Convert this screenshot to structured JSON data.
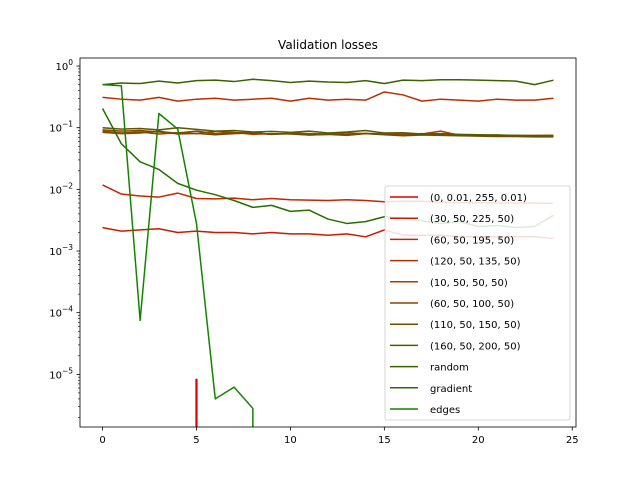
{
  "chart_data": {
    "type": "line",
    "title": "Validation losses",
    "xlabel": "",
    "ylabel": "",
    "xlim": [
      -1.2,
      25.2
    ],
    "ylim": [
      1.4e-06,
      1.35
    ],
    "yscale": "log",
    "x_ticks": [
      0,
      5,
      10,
      15,
      20,
      25
    ],
    "y_ticks": [
      {
        "value": 1,
        "label": "10^0"
      },
      {
        "value": 0.1,
        "label": "10^-1"
      },
      {
        "value": 0.01,
        "label": "10^-2"
      },
      {
        "value": 0.001,
        "label": "10^-3"
      },
      {
        "value": 0.0001,
        "label": "10^-4"
      },
      {
        "value": 1e-05,
        "label": "10^-5"
      }
    ],
    "grid": false,
    "legend_position": "lower-right",
    "series": [
      {
        "name": "(0, 0.01, 255, 0.01)",
        "color": "#d90000",
        "x": [
          5,
          5
        ],
        "y": [
          8.5e-06,
          1.4e-06
        ]
      },
      {
        "name": "(30, 50, 225, 50)",
        "color": "#c81c00",
        "x": [
          0,
          1,
          2,
          3,
          4,
          5,
          6,
          7,
          8,
          9,
          10,
          11,
          12,
          13,
          14,
          15,
          16,
          17,
          18,
          19,
          20,
          21,
          22,
          23,
          24
        ],
        "y": [
          0.0024,
          0.0021,
          0.0022,
          0.0023,
          0.002,
          0.0021,
          0.002,
          0.002,
          0.0019,
          0.002,
          0.0019,
          0.0019,
          0.0018,
          0.0019,
          0.0017,
          0.0022,
          0.0018,
          0.0018,
          0.0018,
          0.0017,
          0.0017,
          0.0017,
          0.0017,
          0.0017,
          0.0016
        ]
      },
      {
        "name": "(60, 50, 195, 50)",
        "color": "#c42600",
        "x": [
          0,
          1,
          2,
          3,
          4,
          5,
          6,
          7,
          8,
          9,
          10,
          11,
          12,
          13,
          14,
          15,
          16,
          17,
          18,
          19,
          20,
          21,
          22,
          23,
          24
        ],
        "y": [
          0.0118,
          0.0084,
          0.0078,
          0.0075,
          0.0087,
          0.0071,
          0.007,
          0.0072,
          0.0068,
          0.0071,
          0.0068,
          0.0067,
          0.0066,
          0.0068,
          0.0066,
          0.0063,
          0.0064,
          0.0064,
          0.0062,
          0.0061,
          0.0061,
          0.006,
          0.006,
          0.006,
          0.0059
        ]
      },
      {
        "name": "(120, 50, 135, 50)",
        "color": "#b82f00",
        "x": [
          0,
          1,
          2,
          3,
          4,
          5,
          6,
          7,
          8,
          9,
          10,
          11,
          12,
          13,
          14,
          15,
          16,
          17,
          18,
          19,
          20,
          21,
          22,
          23,
          24
        ],
        "y": [
          0.31,
          0.29,
          0.28,
          0.31,
          0.27,
          0.29,
          0.3,
          0.28,
          0.29,
          0.3,
          0.27,
          0.3,
          0.28,
          0.29,
          0.28,
          0.38,
          0.34,
          0.27,
          0.29,
          0.28,
          0.27,
          0.29,
          0.28,
          0.28,
          0.3
        ]
      },
      {
        "name": "(10, 50, 50, 50)",
        "color": "#a83e00",
        "x": [
          0,
          1,
          2,
          3,
          4,
          5,
          6,
          7,
          8,
          9,
          10,
          11,
          12,
          13,
          14,
          15,
          16,
          17,
          18,
          19,
          20,
          21,
          22,
          23,
          24
        ],
        "y": [
          0.088,
          0.082,
          0.085,
          0.079,
          0.083,
          0.08,
          0.087,
          0.084,
          0.078,
          0.08,
          0.079,
          0.076,
          0.078,
          0.082,
          0.08,
          0.078,
          0.077,
          0.079,
          0.088,
          0.075,
          0.076,
          0.074,
          0.075,
          0.074,
          0.075
        ]
      },
      {
        "name": "(60, 50, 100, 50)",
        "color": "#8c4500",
        "x": [
          0,
          1,
          2,
          3,
          4,
          5,
          6,
          7,
          8,
          9,
          10,
          11,
          12,
          13,
          14,
          15,
          16,
          17,
          18,
          19,
          20,
          21,
          22,
          23,
          24
        ],
        "y": [
          0.092,
          0.088,
          0.09,
          0.085,
          0.082,
          0.088,
          0.08,
          0.083,
          0.084,
          0.078,
          0.082,
          0.08,
          0.079,
          0.077,
          0.081,
          0.079,
          0.078,
          0.08,
          0.076,
          0.077,
          0.075,
          0.076,
          0.074,
          0.075,
          0.075
        ]
      },
      {
        "name": "(110, 50, 150, 50)",
        "color": "#6e4e00",
        "x": [
          0,
          1,
          2,
          3,
          4,
          5,
          6,
          7,
          8,
          9,
          10,
          11,
          12,
          13,
          14,
          15,
          16,
          17,
          18,
          19,
          20,
          21,
          22,
          23,
          24
        ],
        "y": [
          0.084,
          0.08,
          0.082,
          0.088,
          0.079,
          0.081,
          0.077,
          0.08,
          0.082,
          0.078,
          0.08,
          0.076,
          0.078,
          0.075,
          0.08,
          0.077,
          0.074,
          0.076,
          0.075,
          0.074,
          0.073,
          0.072,
          0.072,
          0.071,
          0.071
        ]
      },
      {
        "name": "(160, 50, 200, 50)",
        "color": "#545b00",
        "x": [
          0,
          1,
          2,
          3,
          4,
          5,
          6,
          7,
          8,
          9,
          10,
          11,
          12,
          13,
          14,
          15,
          16,
          17,
          18,
          19,
          20,
          21,
          22,
          23,
          24
        ],
        "y": [
          0.1,
          0.095,
          0.097,
          0.092,
          0.1,
          0.094,
          0.088,
          0.09,
          0.085,
          0.087,
          0.084,
          0.088,
          0.082,
          0.085,
          0.09,
          0.082,
          0.083,
          0.079,
          0.08,
          0.078,
          0.077,
          0.076,
          0.075,
          0.074,
          0.073
        ]
      },
      {
        "name": "random",
        "color": "#3a6200",
        "x": [
          0,
          1,
          2,
          3,
          4,
          5,
          6,
          7,
          8,
          9,
          10,
          11,
          12,
          13,
          14,
          15,
          16,
          17,
          18,
          19,
          20,
          21,
          22,
          23,
          24
        ],
        "y": [
          0.5,
          0.53,
          0.52,
          0.57,
          0.53,
          0.58,
          0.59,
          0.56,
          0.61,
          0.58,
          0.54,
          0.57,
          0.55,
          0.54,
          0.58,
          0.52,
          0.59,
          0.58,
          0.6,
          0.6,
          0.59,
          0.58,
          0.57,
          0.5,
          0.59
        ]
      },
      {
        "name": "gradient",
        "color": "#257000",
        "x": [
          0,
          1,
          2,
          3,
          4,
          5,
          6,
          7,
          8,
          9,
          10,
          11,
          12,
          13,
          14,
          15,
          16,
          17,
          18,
          19,
          20,
          21,
          22,
          23,
          24
        ],
        "y": [
          0.205,
          0.055,
          0.028,
          0.021,
          0.0125,
          0.0097,
          0.0082,
          0.0066,
          0.0051,
          0.0055,
          0.0044,
          0.0046,
          0.0033,
          0.0028,
          0.003,
          0.0036,
          0.0034,
          0.0031,
          0.0028,
          0.003,
          0.0025,
          0.0026,
          0.0024,
          0.0025,
          0.0038
        ]
      },
      {
        "name": "edges",
        "color": "#148400",
        "x": [
          0,
          1,
          2,
          3,
          4,
          5,
          6,
          7,
          8,
          8
        ],
        "y": [
          0.5,
          0.48,
          7.5e-05,
          0.17,
          0.095,
          0.0028,
          4e-06,
          6.2e-06,
          2.8e-06,
          1.4e-06
        ]
      }
    ]
  }
}
